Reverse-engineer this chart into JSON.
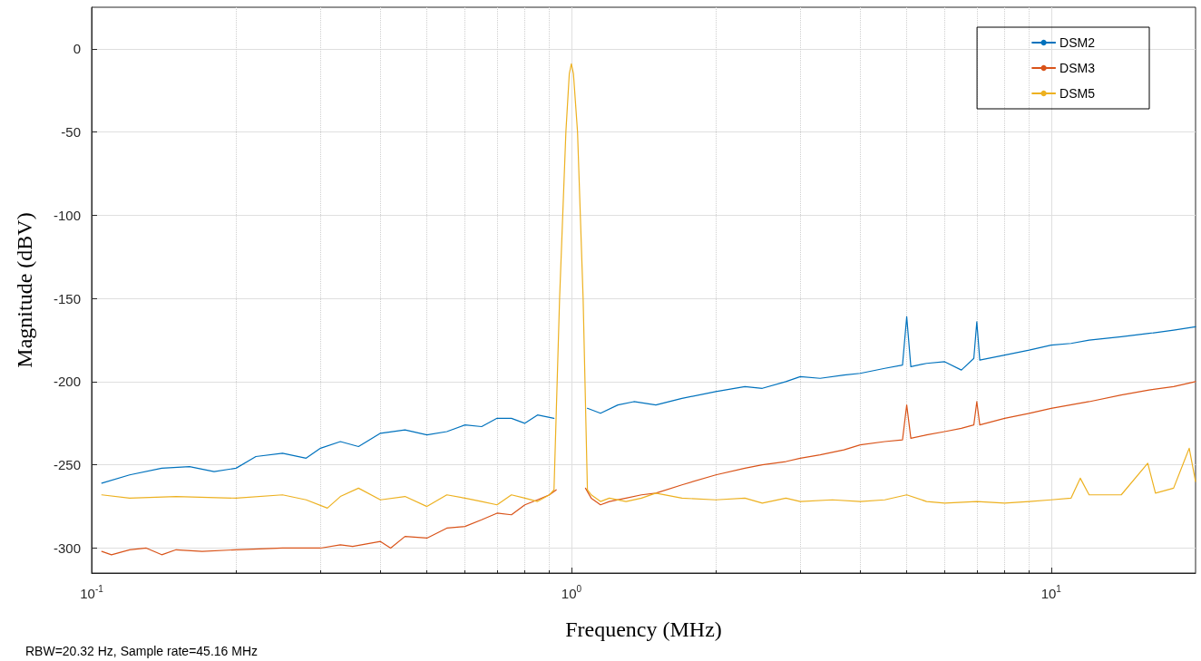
{
  "chart_data": {
    "type": "line",
    "xlabel": "Frequency (MHz)",
    "ylabel": "Magnitude (dBV)",
    "log": "x",
    "xlim": [
      0.1,
      20
    ],
    "xticks": [
      {
        "value": 0.1,
        "label": "10$^{-1}$"
      },
      {
        "value": 1,
        "label": "10$^{0}$"
      },
      {
        "value": 10,
        "label": "10$^{1}$"
      }
    ],
    "ylim": [
      -315,
      25
    ],
    "yticks": [
      -300,
      -250,
      -200,
      -150,
      -100,
      -50,
      0
    ],
    "grid": true,
    "legend": "top right",
    "marker": "none",
    "line_style": "solid",
    "annotations": [
      "RBW=20.32 Hz, Sample rate=45.16 MHz"
    ],
    "series": [
      {
        "name": "DSM2",
        "color": "#0072bd",
        "x": [
          0.105,
          0.12,
          0.14,
          0.16,
          0.18,
          0.2,
          0.22,
          0.25,
          0.28,
          0.3,
          0.33,
          0.36,
          0.4,
          0.45,
          0.5,
          0.55,
          0.6,
          0.65,
          0.7,
          0.75,
          0.8,
          0.85,
          0.92,
          1.0,
          1.08,
          1.15,
          1.25,
          1.35,
          1.5,
          1.7,
          2,
          2.3,
          2.5,
          2.8,
          3,
          3.3,
          3.7,
          4,
          4.5,
          4.9,
          5,
          5.1,
          5.5,
          6,
          6.5,
          6.9,
          7,
          7.1,
          8,
          9,
          10,
          11,
          12,
          14,
          16,
          18,
          20
        ],
        "values": [
          -261,
          -256,
          -252,
          -251,
          -254,
          -252,
          -245,
          -243,
          -246,
          -240,
          -236,
          -239,
          -231,
          -229,
          -232,
          -230,
          -226,
          -227,
          -222,
          -222,
          -225,
          -220,
          -222,
          null,
          -216,
          -219,
          -214,
          -212,
          -214,
          -210,
          -206,
          -203,
          -204,
          -200,
          -197,
          -198,
          -196,
          -195,
          -192,
          -190,
          -161,
          -191,
          -189,
          -188,
          -193,
          -186,
          -164,
          -187,
          -184,
          -181,
          -178,
          -177,
          -175,
          -173,
          -171,
          -169,
          -167
        ]
      },
      {
        "name": "DSM3",
        "color": "#d95319",
        "x": [
          0.105,
          0.11,
          0.12,
          0.13,
          0.14,
          0.15,
          0.17,
          0.2,
          0.25,
          0.3,
          0.33,
          0.35,
          0.4,
          0.42,
          0.45,
          0.5,
          0.55,
          0.6,
          0.65,
          0.7,
          0.75,
          0.8,
          0.85,
          0.9,
          0.93,
          1.0,
          1.07,
          1.1,
          1.15,
          1.2,
          1.3,
          1.4,
          1.5,
          1.7,
          2,
          2.3,
          2.5,
          2.8,
          3,
          3.3,
          3.7,
          4,
          4.5,
          4.9,
          5,
          5.1,
          5.5,
          6,
          6.5,
          6.9,
          7,
          7.1,
          8,
          9,
          10,
          12,
          14,
          16,
          18,
          20
        ],
        "values": [
          -302,
          -304,
          -301,
          -300,
          -304,
          -301,
          -302,
          -301,
          -300,
          -300,
          -298,
          -299,
          -296,
          -300,
          -293,
          -294,
          -288,
          -287,
          -283,
          -279,
          -280,
          -274,
          -271,
          -268,
          -265,
          null,
          -264,
          -270,
          -274,
          -272,
          -270,
          -268,
          -267,
          -262,
          -256,
          -252,
          -250,
          -248,
          -246,
          -244,
          -241,
          -238,
          -236,
          -235,
          -214,
          -234,
          -232,
          -230,
          -228,
          -226,
          -212,
          -226,
          -222,
          -219,
          -216,
          -212,
          -208,
          -205,
          -203,
          -200
        ]
      },
      {
        "name": "DSM5",
        "color": "#edb120",
        "x": [
          0.105,
          0.12,
          0.15,
          0.2,
          0.25,
          0.28,
          0.31,
          0.33,
          0.36,
          0.4,
          0.45,
          0.5,
          0.55,
          0.6,
          0.65,
          0.7,
          0.75,
          0.8,
          0.85,
          0.9,
          0.92,
          0.945,
          0.974,
          0.99,
          1.0,
          1.01,
          1.03,
          1.058,
          1.08,
          1.1,
          1.15,
          1.2,
          1.3,
          1.4,
          1.5,
          1.7,
          2,
          2.3,
          2.5,
          2.8,
          3,
          3.5,
          4,
          4.5,
          5,
          5.5,
          6,
          7,
          8,
          9,
          10,
          11,
          11.5,
          12,
          14,
          15.9,
          16.5,
          18,
          19.4,
          20
        ],
        "values": [
          -268,
          -270,
          -269,
          -270,
          -268,
          -271,
          -276,
          -269,
          -264,
          -271,
          -269,
          -275,
          -268,
          -270,
          -272,
          -274,
          -268,
          -270,
          -272,
          -268,
          -265,
          -150,
          -50,
          -15,
          -9,
          -15,
          -50,
          -150,
          -265,
          -268,
          -272,
          -270,
          -272,
          -270,
          -267,
          -270,
          -271,
          -270,
          -273,
          -270,
          -272,
          -271,
          -272,
          -271,
          -268,
          -272,
          -273,
          -272,
          -273,
          -272,
          -271,
          -270,
          -258,
          -268,
          -268,
          -249,
          -267,
          -264,
          -240,
          -260
        ]
      }
    ]
  }
}
